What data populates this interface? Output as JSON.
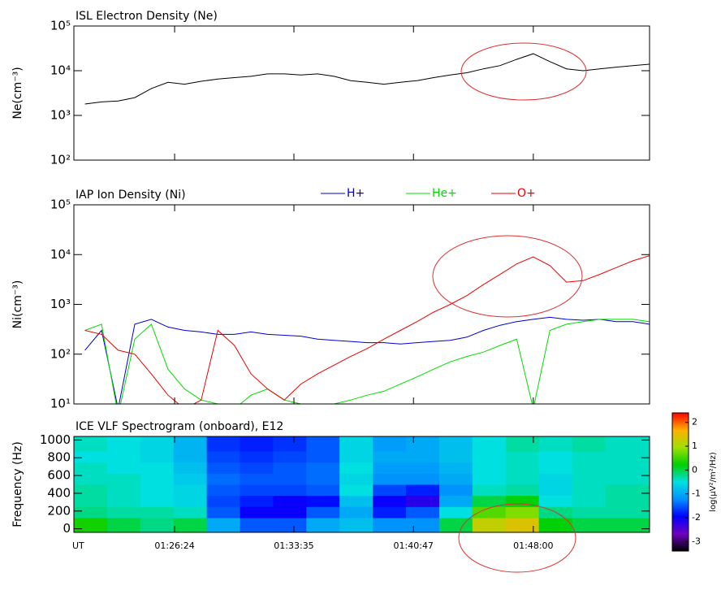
{
  "chart_data": [
    {
      "type": "line",
      "title": "ISL Electron Density (Ne)",
      "ylabel": "Ne(cm⁻³)",
      "yscale": "log",
      "xlim": [
        "01:20:20",
        "01:55:00"
      ],
      "ylim": [
        100,
        100000
      ],
      "yticks": [
        {
          "value": 100,
          "label": "10²"
        },
        {
          "value": 1000,
          "label": "10³"
        },
        {
          "value": 10000,
          "label": "10⁴"
        },
        {
          "value": 100000,
          "label": "10⁵"
        }
      ],
      "x": [
        "01:21:00",
        "01:22:00",
        "01:23:00",
        "01:24:00",
        "01:25:00",
        "01:26:00",
        "01:27:00",
        "01:28:00",
        "01:29:00",
        "01:30:00",
        "01:31:00",
        "01:32:00",
        "01:33:00",
        "01:34:00",
        "01:35:00",
        "01:36:00",
        "01:37:00",
        "01:38:00",
        "01:39:00",
        "01:40:00",
        "01:41:00",
        "01:42:00",
        "01:43:00",
        "01:44:00",
        "01:45:00",
        "01:46:00",
        "01:47:00",
        "01:48:00",
        "01:49:00",
        "01:50:00",
        "01:51:00",
        "01:52:00",
        "01:53:00",
        "01:54:00",
        "01:55:00"
      ],
      "series": [
        {
          "color": "#000000",
          "values": [
            1800,
            2000,
            2100,
            2500,
            4000,
            5500,
            5000,
            5800,
            6500,
            7000,
            7500,
            8500,
            8500,
            8000,
            8500,
            7500,
            6000,
            5500,
            5000,
            5500,
            6000,
            7000,
            8000,
            9000,
            11000,
            13000,
            18000,
            24000,
            16000,
            11000,
            10000,
            11000,
            12000,
            13000,
            14000
          ]
        }
      ]
    },
    {
      "type": "line",
      "title": "IAP Ion Density (Ni)",
      "ylabel": "Ni(cm⁻³)",
      "yscale": "log",
      "legend": "top",
      "xlim": [
        "01:20:20",
        "01:55:00"
      ],
      "ylim": [
        10,
        100000
      ],
      "yticks": [
        {
          "value": 10,
          "label": "10¹"
        },
        {
          "value": 100,
          "label": "10²"
        },
        {
          "value": 1000,
          "label": "10³"
        },
        {
          "value": 10000,
          "label": "10⁴"
        },
        {
          "value": 100000,
          "label": "10⁵"
        }
      ],
      "x": [
        "01:21:00",
        "01:22:00",
        "01:23:00",
        "01:24:00",
        "01:25:00",
        "01:26:00",
        "01:27:00",
        "01:28:00",
        "01:29:00",
        "01:30:00",
        "01:31:00",
        "01:32:00",
        "01:33:00",
        "01:34:00",
        "01:35:00",
        "01:36:00",
        "01:37:00",
        "01:38:00",
        "01:39:00",
        "01:40:00",
        "01:41:00",
        "01:42:00",
        "01:43:00",
        "01:44:00",
        "01:45:00",
        "01:46:00",
        "01:47:00",
        "01:48:00",
        "01:49:00",
        "01:50:00",
        "01:51:00",
        "01:52:00",
        "01:53:00",
        "01:54:00",
        "01:55:00"
      ],
      "series": [
        {
          "name": "H+",
          "color": "#0000cc",
          "values": [
            120,
            300,
            8,
            400,
            500,
            350,
            300,
            280,
            250,
            250,
            280,
            250,
            240,
            230,
            200,
            190,
            180,
            170,
            170,
            160,
            170,
            180,
            190,
            220,
            300,
            380,
            450,
            500,
            550,
            500,
            480,
            500,
            450,
            450,
            400
          ]
        },
        {
          "name": "He+",
          "color": "#00dd00",
          "values": [
            300,
            400,
            6,
            200,
            400,
            50,
            20,
            12,
            10,
            8,
            15,
            20,
            12,
            10,
            8,
            10,
            12,
            15,
            18,
            25,
            35,
            50,
            70,
            90,
            110,
            150,
            200,
            8,
            300,
            400,
            450,
            500,
            500,
            500,
            450
          ]
        },
        {
          "name": "O+",
          "color": "#ee0000",
          "values": [
            300,
            250,
            120,
            100,
            40,
            15,
            8,
            12,
            300,
            150,
            40,
            20,
            12,
            25,
            40,
            60,
            90,
            130,
            200,
            300,
            450,
            700,
            1000,
            1500,
            2500,
            4000,
            6500,
            9000,
            6000,
            2800,
            3000,
            4000,
            5500,
            7500,
            9500
          ]
        }
      ]
    },
    {
      "type": "heatmap",
      "title": "ICE VLF Spectrogram (onboard), E12",
      "ylabel": "Frequency (Hz)",
      "xlabel": "UT",
      "xlim": [
        "01:20:20",
        "01:55:00"
      ],
      "xticks": [
        "01:26:24",
        "01:33:35",
        "01:40:47",
        "01:48:00"
      ],
      "ylim": [
        -40,
        1040
      ],
      "yticks": [
        0,
        200,
        400,
        600,
        800,
        1000
      ],
      "xbins": [
        "01:20:20",
        "01:22:20",
        "01:24:20",
        "01:26:20",
        "01:28:20",
        "01:30:20",
        "01:32:20",
        "01:34:20",
        "01:36:20",
        "01:38:20",
        "01:40:20",
        "01:42:20",
        "01:44:20",
        "01:46:20",
        "01:48:20",
        "01:50:20",
        "01:52:20",
        "01:55:00"
      ],
      "ybins": [
        -40,
        125,
        250,
        375,
        500,
        625,
        750,
        875,
        1040
      ],
      "z": [
        [
          0.3,
          0,
          -0.2,
          0,
          -1,
          -1.5,
          -1.5,
          -1,
          -0.8,
          -1.2,
          -1.2,
          0,
          1.2,
          1.4,
          0.2,
          0,
          0
        ],
        [
          -0.2,
          -0.3,
          -0.3,
          -0.4,
          -1.5,
          -2,
          -2,
          -1.5,
          -1,
          -1.8,
          -1.5,
          -0.5,
          0.6,
          0.8,
          -0.2,
          -0.3,
          -0.3
        ],
        [
          -0.3,
          -0.4,
          -0.5,
          -0.6,
          -1.6,
          -1.8,
          -2,
          -1.9,
          -0.8,
          -2,
          -2.2,
          -1,
          0,
          0.2,
          -0.5,
          -0.4,
          -0.3
        ],
        [
          -0.3,
          -0.4,
          -0.5,
          -0.6,
          -1.5,
          -1.6,
          -1.6,
          -1.5,
          -0.5,
          -1.6,
          -1.8,
          -1.2,
          -0.4,
          -0.3,
          -0.6,
          -0.4,
          -0.3
        ],
        [
          -0.4,
          -0.4,
          -0.5,
          -0.7,
          -1.4,
          -1.5,
          -1.5,
          -1.4,
          -0.6,
          -1.2,
          -1.2,
          -1,
          -0.5,
          -0.4,
          -0.6,
          -0.4,
          -0.4
        ],
        [
          -0.4,
          -0.5,
          -0.5,
          -0.8,
          -1.5,
          -1.6,
          -1.5,
          -1.4,
          -0.5,
          -1.1,
          -1.1,
          -0.9,
          -0.5,
          -0.4,
          -0.5,
          -0.4,
          -0.4
        ],
        [
          -0.5,
          -0.5,
          -0.6,
          -0.9,
          -1.6,
          -1.7,
          -1.6,
          -1.5,
          -0.6,
          -1,
          -1,
          -0.8,
          -0.5,
          -0.4,
          -0.5,
          -0.4,
          -0.4
        ],
        [
          -0.4,
          -0.5,
          -0.6,
          -0.9,
          -1.7,
          -1.8,
          -1.7,
          -1.5,
          -0.6,
          -1.1,
          -1,
          -0.8,
          -0.5,
          -0.3,
          -0.4,
          -0.3,
          -0.4
        ]
      ],
      "zlim": [
        -3.4,
        2.4
      ],
      "zticks": [
        -3,
        -2,
        -1,
        0,
        1,
        2
      ],
      "zlabel": "log(μV²/m²/Hz)",
      "colorscale": [
        "#000000",
        "#7000c0",
        "#0000ff",
        "#0090ff",
        "#00e0e0",
        "#00d000",
        "#a0e000",
        "#ffb000",
        "#ff0000"
      ]
    }
  ]
}
